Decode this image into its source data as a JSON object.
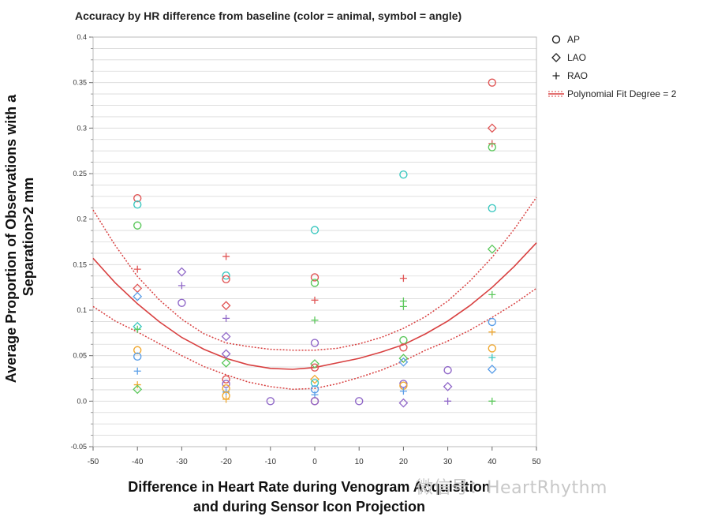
{
  "chart_data": {
    "type": "scatter",
    "title": "Accuracy by HR difference from baseline (color = animal, symbol = angle)",
    "xlabel_lines": [
      "Difference in Heart Rate during Venogram Acquisition",
      "and during Sensor Icon Projection"
    ],
    "ylabel_lines": [
      "Average Proportion of Observations with a",
      "Separation>2 mm"
    ],
    "xlim": [
      -50,
      50
    ],
    "ylim": [
      -0.05,
      0.4
    ],
    "x_ticks": [
      -50,
      -40,
      -30,
      -20,
      -10,
      0,
      10,
      20,
      30,
      40,
      50
    ],
    "y_ticks": [
      -0.05,
      0.0,
      0.05,
      0.1,
      0.15,
      0.2,
      0.25,
      0.3,
      0.35,
      0.4
    ],
    "y_tick_labels": [
      "-0.05",
      "0.0",
      "0.05",
      "0.1",
      "0.15",
      "0.2",
      "0.25",
      "0.3",
      "0.35",
      "0.4"
    ],
    "grid": true,
    "legend": {
      "position": "top-right",
      "items": [
        {
          "symbol": "circle",
          "label": "AP"
        },
        {
          "symbol": "diamond",
          "label": "LAO"
        },
        {
          "symbol": "plus",
          "label": "RAO"
        },
        {
          "symbol": "fit",
          "label": "Polynomial Fit Degree = 2"
        }
      ]
    },
    "colors": {
      "red": "#e05555",
      "cyan": "#3cc8c0",
      "green": "#5cc85c",
      "blue": "#5a9ee8",
      "orange": "#f0a830",
      "purple": "#9068c8",
      "fit": "#d84040",
      "grid": "#d9d9d9"
    },
    "points": [
      {
        "x": -40,
        "y": 0.223,
        "symbol": "circle",
        "color": "red"
      },
      {
        "x": -40,
        "y": 0.216,
        "symbol": "circle",
        "color": "cyan"
      },
      {
        "x": -40,
        "y": 0.193,
        "symbol": "circle",
        "color": "green"
      },
      {
        "x": -40,
        "y": 0.145,
        "symbol": "plus",
        "color": "red"
      },
      {
        "x": -40,
        "y": 0.124,
        "symbol": "diamond",
        "color": "red"
      },
      {
        "x": -40,
        "y": 0.115,
        "symbol": "diamond",
        "color": "blue"
      },
      {
        "x": -40,
        "y": 0.082,
        "symbol": "diamond",
        "color": "cyan"
      },
      {
        "x": -40,
        "y": 0.079,
        "symbol": "plus",
        "color": "green"
      },
      {
        "x": -40,
        "y": 0.056,
        "symbol": "circle",
        "color": "orange"
      },
      {
        "x": -40,
        "y": 0.049,
        "symbol": "circle",
        "color": "blue"
      },
      {
        "x": -40,
        "y": 0.033,
        "symbol": "plus",
        "color": "blue"
      },
      {
        "x": -40,
        "y": 0.018,
        "symbol": "plus",
        "color": "orange"
      },
      {
        "x": -40,
        "y": 0.013,
        "symbol": "diamond",
        "color": "green"
      },
      {
        "x": -30,
        "y": 0.142,
        "symbol": "diamond",
        "color": "purple"
      },
      {
        "x": -30,
        "y": 0.127,
        "symbol": "plus",
        "color": "purple"
      },
      {
        "x": -30,
        "y": 0.108,
        "symbol": "circle",
        "color": "purple"
      },
      {
        "x": -20,
        "y": 0.159,
        "symbol": "plus",
        "color": "red"
      },
      {
        "x": -20,
        "y": 0.138,
        "symbol": "circle",
        "color": "cyan"
      },
      {
        "x": -20,
        "y": 0.134,
        "symbol": "circle",
        "color": "red"
      },
      {
        "x": -20,
        "y": 0.105,
        "symbol": "diamond",
        "color": "red"
      },
      {
        "x": -20,
        "y": 0.091,
        "symbol": "plus",
        "color": "purple"
      },
      {
        "x": -20,
        "y": 0.071,
        "symbol": "diamond",
        "color": "purple"
      },
      {
        "x": -20,
        "y": 0.052,
        "symbol": "diamond",
        "color": "purple"
      },
      {
        "x": -20,
        "y": 0.042,
        "symbol": "diamond",
        "color": "green"
      },
      {
        "x": -20,
        "y": 0.024,
        "symbol": "circle",
        "color": "red"
      },
      {
        "x": -20,
        "y": 0.019,
        "symbol": "circle",
        "color": "purple"
      },
      {
        "x": -20,
        "y": 0.014,
        "symbol": "circle",
        "color": "orange"
      },
      {
        "x": -20,
        "y": 0.01,
        "symbol": "plus",
        "color": "blue"
      },
      {
        "x": -20,
        "y": 0.006,
        "symbol": "circle",
        "color": "orange"
      },
      {
        "x": -20,
        "y": 0.002,
        "symbol": "plus",
        "color": "orange"
      },
      {
        "x": -10,
        "y": 0.0,
        "symbol": "circle",
        "color": "purple"
      },
      {
        "x": 0,
        "y": 0.188,
        "symbol": "circle",
        "color": "cyan"
      },
      {
        "x": 0,
        "y": 0.136,
        "symbol": "circle",
        "color": "red"
      },
      {
        "x": 0,
        "y": 0.13,
        "symbol": "circle",
        "color": "green"
      },
      {
        "x": 0,
        "y": 0.111,
        "symbol": "plus",
        "color": "red"
      },
      {
        "x": 0,
        "y": 0.089,
        "symbol": "plus",
        "color": "green"
      },
      {
        "x": 0,
        "y": 0.064,
        "symbol": "circle",
        "color": "purple"
      },
      {
        "x": 0,
        "y": 0.041,
        "symbol": "diamond",
        "color": "green"
      },
      {
        "x": 0,
        "y": 0.037,
        "symbol": "circle",
        "color": "red"
      },
      {
        "x": 0,
        "y": 0.024,
        "symbol": "diamond",
        "color": "orange"
      },
      {
        "x": 0,
        "y": 0.02,
        "symbol": "circle",
        "color": "cyan"
      },
      {
        "x": 0,
        "y": 0.013,
        "symbol": "circle",
        "color": "blue"
      },
      {
        "x": 0,
        "y": 0.007,
        "symbol": "plus",
        "color": "blue"
      },
      {
        "x": 0,
        "y": 0.0,
        "symbol": "circle",
        "color": "red"
      },
      {
        "x": 0,
        "y": 0.0,
        "symbol": "circle",
        "color": "purple"
      },
      {
        "x": 10,
        "y": 0.0,
        "symbol": "circle",
        "color": "purple"
      },
      {
        "x": 20,
        "y": 0.249,
        "symbol": "circle",
        "color": "cyan"
      },
      {
        "x": 20,
        "y": 0.135,
        "symbol": "plus",
        "color": "red"
      },
      {
        "x": 20,
        "y": 0.11,
        "symbol": "plus",
        "color": "green"
      },
      {
        "x": 20,
        "y": 0.104,
        "symbol": "plus",
        "color": "green"
      },
      {
        "x": 20,
        "y": 0.067,
        "symbol": "circle",
        "color": "green"
      },
      {
        "x": 20,
        "y": 0.059,
        "symbol": "circle",
        "color": "red"
      },
      {
        "x": 20,
        "y": 0.047,
        "symbol": "diamond",
        "color": "green"
      },
      {
        "x": 20,
        "y": 0.043,
        "symbol": "diamond",
        "color": "blue"
      },
      {
        "x": 20,
        "y": 0.019,
        "symbol": "circle",
        "color": "purple"
      },
      {
        "x": 20,
        "y": 0.017,
        "symbol": "circle",
        "color": "orange"
      },
      {
        "x": 20,
        "y": 0.011,
        "symbol": "plus",
        "color": "blue"
      },
      {
        "x": 20,
        "y": -0.002,
        "symbol": "diamond",
        "color": "purple"
      },
      {
        "x": 30,
        "y": 0.034,
        "symbol": "circle",
        "color": "purple"
      },
      {
        "x": 30,
        "y": 0.016,
        "symbol": "diamond",
        "color": "purple"
      },
      {
        "x": 30,
        "y": 0.0,
        "symbol": "plus",
        "color": "purple"
      },
      {
        "x": 40,
        "y": 0.35,
        "symbol": "circle",
        "color": "red"
      },
      {
        "x": 40,
        "y": 0.3,
        "symbol": "diamond",
        "color": "red"
      },
      {
        "x": 40,
        "y": 0.283,
        "symbol": "plus",
        "color": "red"
      },
      {
        "x": 40,
        "y": 0.279,
        "symbol": "circle",
        "color": "green"
      },
      {
        "x": 40,
        "y": 0.212,
        "symbol": "circle",
        "color": "cyan"
      },
      {
        "x": 40,
        "y": 0.167,
        "symbol": "diamond",
        "color": "green"
      },
      {
        "x": 40,
        "y": 0.117,
        "symbol": "plus",
        "color": "green"
      },
      {
        "x": 40,
        "y": 0.087,
        "symbol": "circle",
        "color": "blue"
      },
      {
        "x": 40,
        "y": 0.076,
        "symbol": "plus",
        "color": "orange"
      },
      {
        "x": 40,
        "y": 0.058,
        "symbol": "circle",
        "color": "orange"
      },
      {
        "x": 40,
        "y": 0.048,
        "symbol": "plus",
        "color": "cyan"
      },
      {
        "x": 40,
        "y": 0.035,
        "symbol": "diamond",
        "color": "blue"
      },
      {
        "x": 40,
        "y": 0.0,
        "symbol": "plus",
        "color": "green"
      }
    ],
    "fit": {
      "label": "Polynomial Fit Degree = 2",
      "fit_curve": [
        {
          "x": -50,
          "y": 0.157
        },
        {
          "x": -45,
          "y": 0.13
        },
        {
          "x": -40,
          "y": 0.107
        },
        {
          "x": -35,
          "y": 0.087
        },
        {
          "x": -30,
          "y": 0.07
        },
        {
          "x": -25,
          "y": 0.057
        },
        {
          "x": -20,
          "y": 0.047
        },
        {
          "x": -15,
          "y": 0.04
        },
        {
          "x": -10,
          "y": 0.036
        },
        {
          "x": -5,
          "y": 0.035
        },
        {
          "x": 0,
          "y": 0.037
        },
        {
          "x": 5,
          "y": 0.042
        },
        {
          "x": 10,
          "y": 0.047
        },
        {
          "x": 15,
          "y": 0.054
        },
        {
          "x": 20,
          "y": 0.062
        },
        {
          "x": 25,
          "y": 0.074
        },
        {
          "x": 30,
          "y": 0.088
        },
        {
          "x": 35,
          "y": 0.105
        },
        {
          "x": 40,
          "y": 0.125
        },
        {
          "x": 45,
          "y": 0.148
        },
        {
          "x": 50,
          "y": 0.174
        }
      ],
      "upper_band": [
        {
          "x": -50,
          "y": 0.21
        },
        {
          "x": -45,
          "y": 0.171
        },
        {
          "x": -40,
          "y": 0.137
        },
        {
          "x": -35,
          "y": 0.111
        },
        {
          "x": -30,
          "y": 0.09
        },
        {
          "x": -25,
          "y": 0.074
        },
        {
          "x": -20,
          "y": 0.064
        },
        {
          "x": -15,
          "y": 0.06
        },
        {
          "x": -10,
          "y": 0.057
        },
        {
          "x": -5,
          "y": 0.056
        },
        {
          "x": 0,
          "y": 0.056
        },
        {
          "x": 5,
          "y": 0.058
        },
        {
          "x": 10,
          "y": 0.063
        },
        {
          "x": 15,
          "y": 0.07
        },
        {
          "x": 20,
          "y": 0.08
        },
        {
          "x": 25,
          "y": 0.093
        },
        {
          "x": 30,
          "y": 0.11
        },
        {
          "x": 35,
          "y": 0.132
        },
        {
          "x": 40,
          "y": 0.158
        },
        {
          "x": 45,
          "y": 0.189
        },
        {
          "x": 50,
          "y": 0.224
        }
      ],
      "lower_band": [
        {
          "x": -50,
          "y": 0.104
        },
        {
          "x": -45,
          "y": 0.088
        },
        {
          "x": -40,
          "y": 0.076
        },
        {
          "x": -35,
          "y": 0.063
        },
        {
          "x": -30,
          "y": 0.05
        },
        {
          "x": -25,
          "y": 0.038
        },
        {
          "x": -20,
          "y": 0.029
        },
        {
          "x": -15,
          "y": 0.021
        },
        {
          "x": -10,
          "y": 0.016
        },
        {
          "x": -5,
          "y": 0.013
        },
        {
          "x": 0,
          "y": 0.014
        },
        {
          "x": 5,
          "y": 0.019
        },
        {
          "x": 10,
          "y": 0.026
        },
        {
          "x": 15,
          "y": 0.034
        },
        {
          "x": 20,
          "y": 0.044
        },
        {
          "x": 25,
          "y": 0.056
        },
        {
          "x": 30,
          "y": 0.066
        },
        {
          "x": 35,
          "y": 0.078
        },
        {
          "x": 40,
          "y": 0.092
        },
        {
          "x": 45,
          "y": 0.107
        },
        {
          "x": 50,
          "y": 0.124
        }
      ]
    }
  },
  "watermark_text": "微信号：HeartRhythm"
}
